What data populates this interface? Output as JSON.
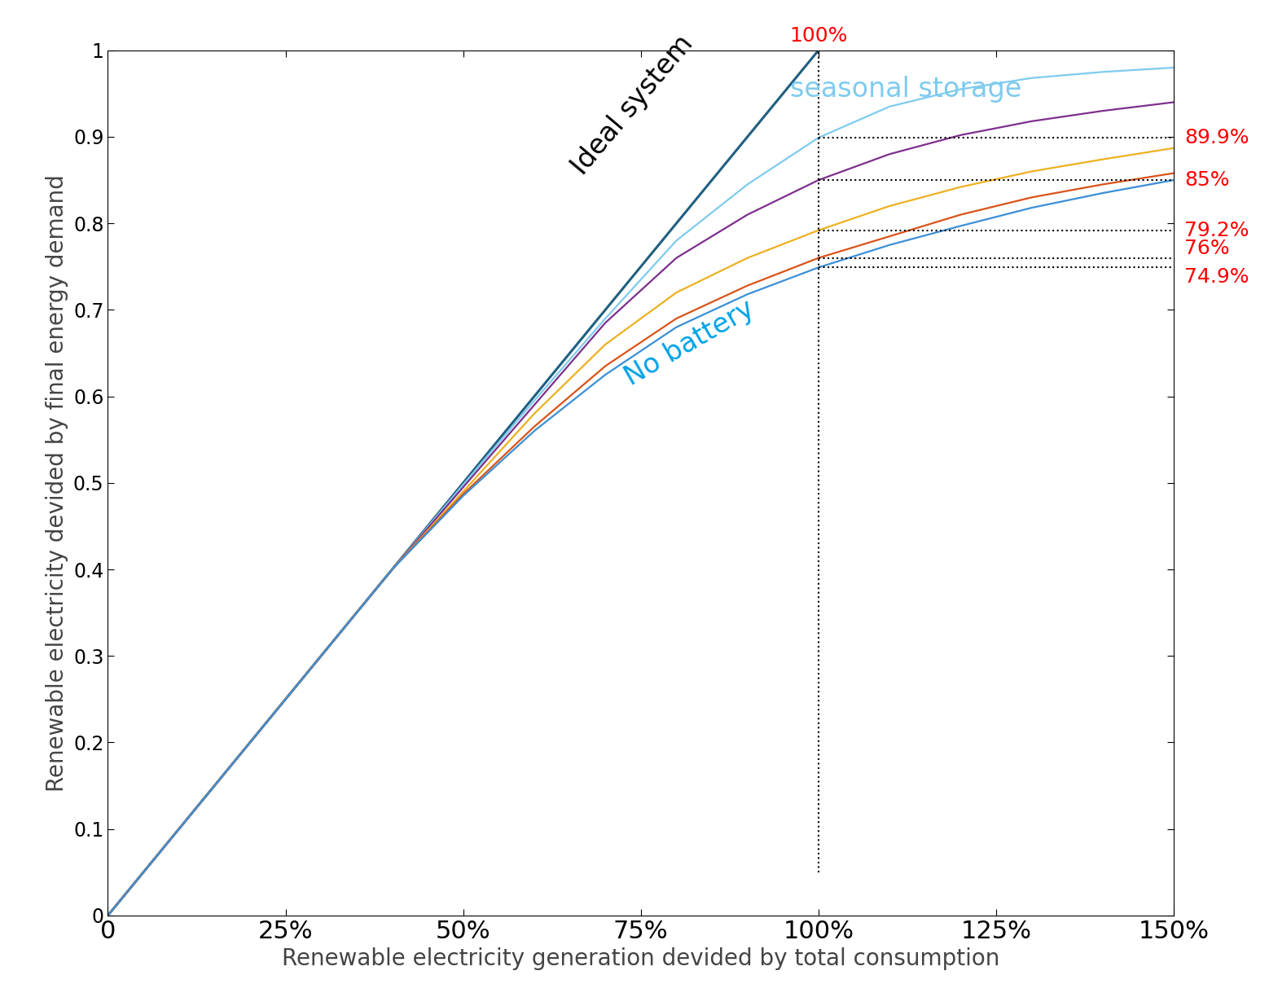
{
  "chart_data": {
    "type": "line",
    "x_label": "Renewable electricity generation devided by total consumption",
    "y_label": "Renewable electricity devided by final energy demand",
    "xlim": [
      0,
      1.5
    ],
    "ylim": [
      0,
      1
    ],
    "xticks": [
      0,
      {
        "value": 0.25,
        "label": "25%"
      },
      {
        "value": 0.5,
        "label": "50%"
      },
      {
        "value": 0.75,
        "label": "75%"
      },
      {
        "value": 1.0,
        "label": "100%"
      },
      {
        "value": 1.25,
        "label": "125%"
      },
      {
        "value": 1.5,
        "label": "150%"
      }
    ],
    "yticks": [
      0,
      0.1,
      0.2,
      0.3,
      0.4,
      0.5,
      0.6,
      0.7,
      0.8,
      0.9,
      1
    ],
    "grid": false,
    "x": [
      0,
      0.1,
      0.2,
      0.3,
      0.4,
      0.5,
      0.6,
      0.7,
      0.8,
      0.9,
      1.0,
      1.1,
      1.2,
      1.3,
      1.4,
      1.5
    ],
    "series": [
      {
        "name": "Ideal system",
        "color": "#1f5f7f",
        "x": [
          0,
          1
        ],
        "values": [
          0,
          1
        ]
      },
      {
        "name": "seasonal storage",
        "color": "#7fcbef",
        "values": [
          0,
          0.1,
          0.2,
          0.3,
          0.4,
          0.498,
          0.595,
          0.69,
          0.78,
          0.845,
          0.899,
          0.935,
          0.955,
          0.968,
          0.975,
          0.98
        ]
      },
      {
        "color": "#7e2f8e",
        "values": [
          0,
          0.1,
          0.2,
          0.3,
          0.4,
          0.495,
          0.59,
          0.685,
          0.76,
          0.81,
          0.85,
          0.88,
          0.902,
          0.918,
          0.93,
          0.94
        ]
      },
      {
        "color": "#edb120",
        "values": [
          0,
          0.1,
          0.2,
          0.3,
          0.4,
          0.49,
          0.58,
          0.66,
          0.72,
          0.76,
          0.792,
          0.82,
          0.842,
          0.86,
          0.874,
          0.887
        ]
      },
      {
        "color": "#d95319",
        "values": [
          0,
          0.1,
          0.2,
          0.3,
          0.4,
          0.487,
          0.565,
          0.635,
          0.69,
          0.728,
          0.76,
          0.785,
          0.81,
          0.83,
          0.845,
          0.858
        ]
      },
      {
        "name": "No battery",
        "color": "#3b8fd6",
        "values": [
          0,
          0.1,
          0.2,
          0.3,
          0.4,
          0.485,
          0.56,
          0.625,
          0.68,
          0.718,
          0.749,
          0.775,
          0.797,
          0.818,
          0.835,
          0.85
        ]
      }
    ],
    "annotations": [
      {
        "text": "100%",
        "x": 1,
        "y": 1
      },
      {
        "text": "89.9%",
        "x": 1,
        "y": 0.899
      },
      {
        "text": "85%",
        "x": 1,
        "y": 0.85
      },
      {
        "text": "79.2%",
        "x": 1,
        "y": 0.792
      },
      {
        "text": "76%",
        "x": 1,
        "y": 0.76
      },
      {
        "text": "74.9%",
        "x": 1,
        "y": 0.749
      }
    ],
    "annotation_color": "#ff0000"
  }
}
